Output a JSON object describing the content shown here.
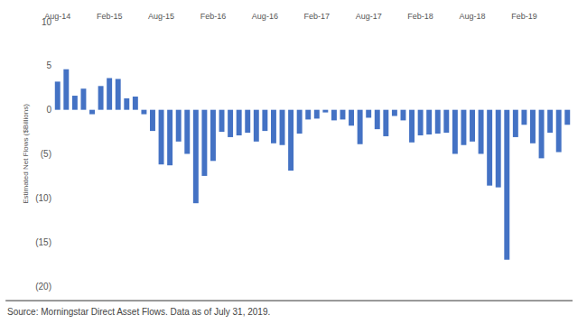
{
  "chart_data": {
    "type": "bar",
    "y_label": "Estimated Net Flows ($Billions)",
    "annotations": [
      "Source: Morningstar Direct Asset Flows. Data as of July 31, 2019."
    ],
    "categories": [
      "Aug-14",
      null,
      null,
      null,
      null,
      null,
      "Feb-15",
      null,
      null,
      null,
      null,
      null,
      "Aug-15",
      null,
      null,
      null,
      null,
      null,
      "Feb-16",
      null,
      null,
      null,
      null,
      null,
      "Aug-16",
      null,
      null,
      null,
      null,
      null,
      "Feb-17",
      null,
      null,
      null,
      null,
      null,
      "Aug-17",
      null,
      null,
      null,
      null,
      null,
      "Feb-18",
      null,
      null,
      null,
      null,
      null,
      "Aug-18",
      null,
      null,
      null,
      null,
      null,
      "Feb-19",
      null,
      null,
      null,
      null,
      null
    ],
    "values": [
      3.2,
      4.6,
      1.6,
      2.4,
      -0.5,
      2.7,
      3.6,
      3.5,
      1.3,
      1.5,
      -0.5,
      -2.4,
      -6.2,
      -6.3,
      -3.6,
      -5.0,
      -10.6,
      -7.5,
      -5.8,
      -2.5,
      -3.1,
      -2.9,
      -2.6,
      -3.6,
      -2.4,
      -3.8,
      -4.0,
      -6.9,
      -2.7,
      -1.1,
      -1.0,
      -0.3,
      -1.2,
      -1.1,
      -1.8,
      -3.9,
      -0.9,
      -2.2,
      -3.0,
      -0.7,
      -1.2,
      -3.7,
      -2.9,
      -2.8,
      -2.7,
      -2.6,
      -5.0,
      -4.0,
      -3.6,
      -5.0,
      -8.6,
      -8.8,
      -17.0,
      -3.1,
      -1.7,
      -3.8,
      -5.5,
      -2.6,
      -4.8,
      -1.7
    ],
    "color": "#4472c4",
    "ylim": [
      -20,
      10
    ],
    "yticks": [
      {
        "value": -20,
        "label": "(20)"
      },
      {
        "value": -15,
        "label": "(15)"
      },
      {
        "value": -10,
        "label": "(10)"
      },
      {
        "value": -5,
        "label": "(5)"
      },
      0,
      5,
      10
    ],
    "grid": false
  }
}
